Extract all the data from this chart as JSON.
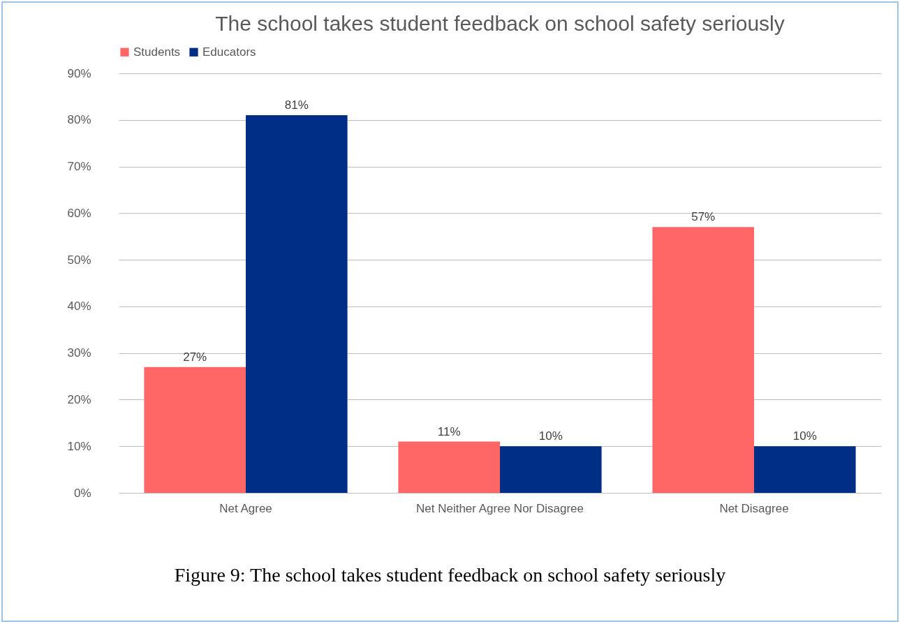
{
  "chart_data": {
    "type": "bar",
    "title": "The school takes student feedback on school safety seriously",
    "categories": [
      "Net Agree",
      "Net Neither Agree Nor Disagree",
      "Net Disagree"
    ],
    "series": [
      {
        "name": "Students",
        "color": "#ff6666",
        "values": [
          27,
          11,
          57
        ],
        "value_labels": [
          "27%",
          "11%",
          "57%"
        ]
      },
      {
        "name": "Educators",
        "color": "#002e87",
        "values": [
          81,
          10,
          10
        ],
        "value_labels": [
          "81%",
          "10%",
          "10%"
        ]
      }
    ],
    "ylim": [
      0,
      90
    ],
    "yticks": [
      {
        "value": 0,
        "label": "0%"
      },
      {
        "value": 10,
        "label": "10%"
      },
      {
        "value": 20,
        "label": "20%"
      },
      {
        "value": 30,
        "label": "30%"
      },
      {
        "value": 40,
        "label": "40%"
      },
      {
        "value": 50,
        "label": "50%"
      },
      {
        "value": 60,
        "label": "60%"
      },
      {
        "value": 70,
        "label": "70%"
      },
      {
        "value": 80,
        "label": "80%"
      },
      {
        "value": 90,
        "label": "90%"
      }
    ],
    "grid": "y",
    "legend": "top",
    "annotations": [
      "Figure 9: The school takes student feedback on school safety seriously"
    ]
  }
}
